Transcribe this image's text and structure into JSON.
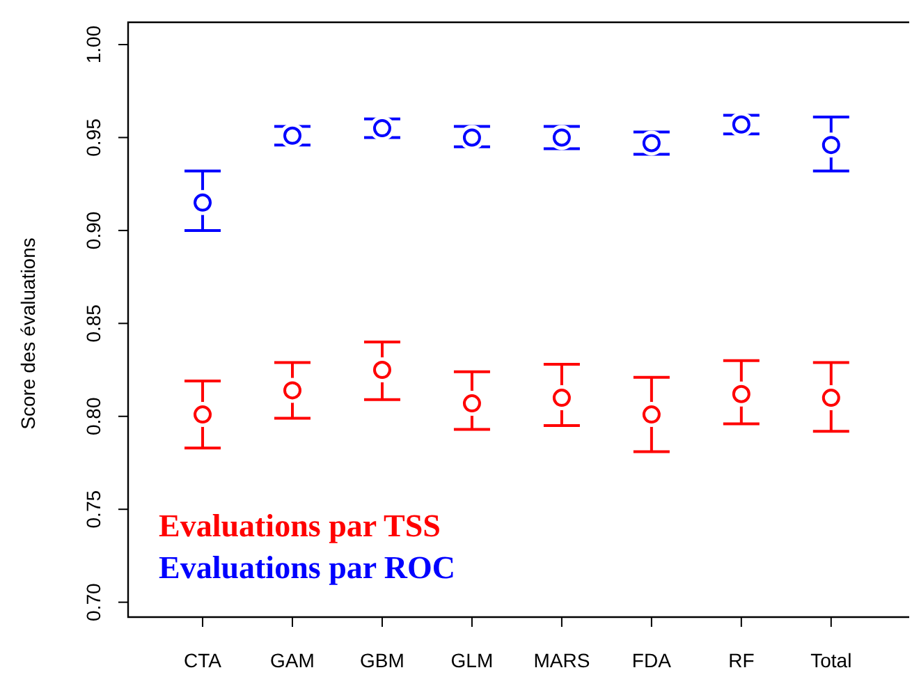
{
  "chart_data": {
    "type": "scatter",
    "ylabel": "Score des évaluations",
    "categories": [
      "CTA",
      "GAM",
      "GBM",
      "GLM",
      "MARS",
      "FDA",
      "RF",
      "Total"
    ],
    "series": [
      {
        "name": "Evaluations par TSS",
        "color": "#ff0000",
        "values": [
          0.801,
          0.814,
          0.825,
          0.807,
          0.81,
          0.801,
          0.812,
          0.81
        ],
        "errors": [
          [
            0.783,
            0.819
          ],
          [
            0.799,
            0.829
          ],
          [
            0.809,
            0.84
          ],
          [
            0.793,
            0.824
          ],
          [
            0.795,
            0.828
          ],
          [
            0.781,
            0.821
          ],
          [
            0.796,
            0.83
          ],
          [
            0.792,
            0.829
          ]
        ]
      },
      {
        "name": "Evaluations par ROC",
        "color": "#0000ff",
        "values": [
          0.915,
          0.951,
          0.955,
          0.95,
          0.95,
          0.947,
          0.957,
          0.946
        ],
        "errors": [
          [
            0.9,
            0.932
          ],
          [
            0.946,
            0.956
          ],
          [
            0.95,
            0.96
          ],
          [
            0.945,
            0.956
          ],
          [
            0.944,
            0.956
          ],
          [
            0.941,
            0.953
          ],
          [
            0.952,
            0.962
          ],
          [
            0.932,
            0.961
          ]
        ]
      }
    ],
    "ylim": [
      0.692,
      1.012
    ],
    "yticks": [
      {
        "value": 0.7,
        "label": "0.70"
      },
      {
        "value": 0.75,
        "label": "0.75"
      },
      {
        "value": 0.8,
        "label": "0.80"
      },
      {
        "value": 0.85,
        "label": "0.85"
      },
      {
        "value": 0.9,
        "label": "0.90"
      },
      {
        "value": 0.95,
        "label": "0.95"
      },
      {
        "value": 1.0,
        "label": "1.00"
      }
    ],
    "marker": "circle",
    "legend": "bottom left",
    "grid": false
  }
}
